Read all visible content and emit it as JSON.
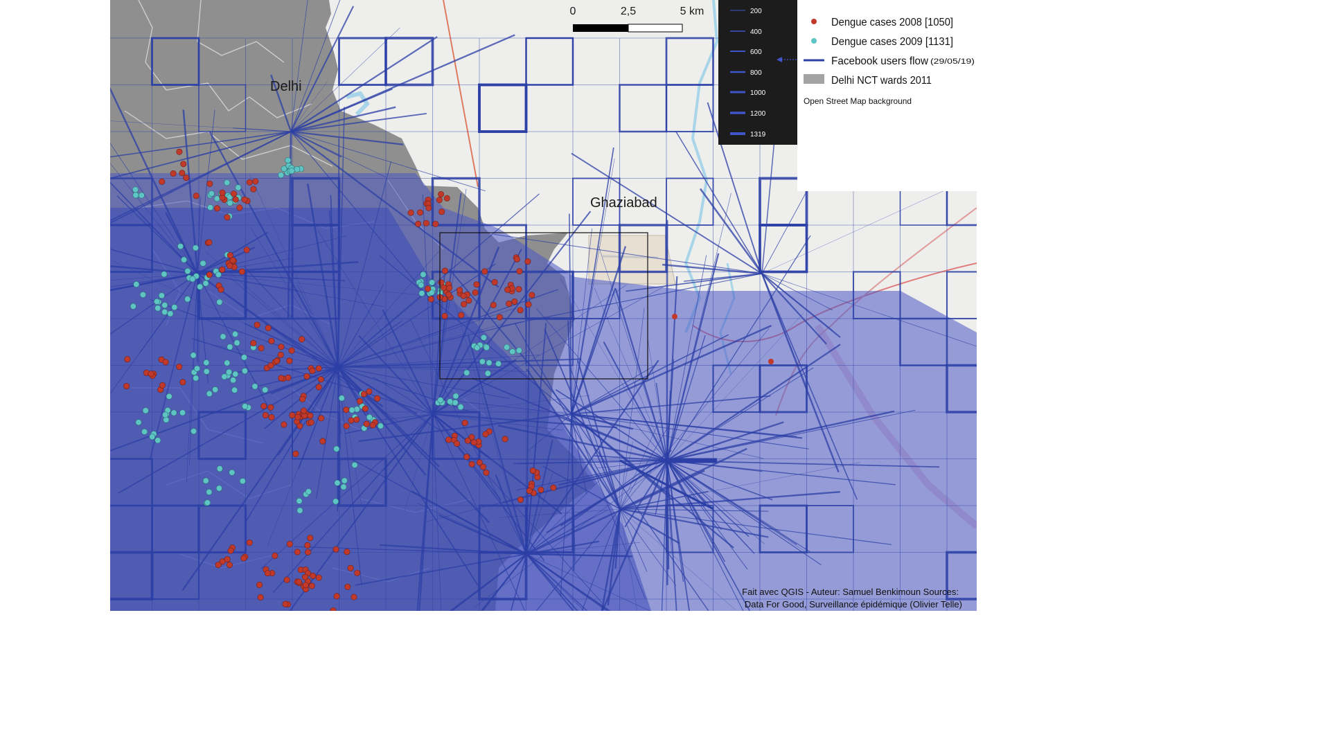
{
  "map": {
    "places": {
      "delhi": "Delhi",
      "ghaziabad": "Ghaziabad"
    },
    "scalebar": {
      "labels": [
        "0",
        "2,5",
        "5 km"
      ]
    },
    "flow_legend": {
      "values": [
        "200",
        "400",
        "600",
        "800",
        "1000",
        "1200",
        "1319"
      ]
    },
    "legend": {
      "dengue_2008": "Dengue cases 2008 [1050]",
      "dengue_2009": "Dengue cases 2009 [1131]",
      "facebook_flow": "Facebook users flow",
      "facebook_date": "(29/05/19)",
      "wards": "Delhi NCT wards 2011",
      "background": "Open Street Map background"
    },
    "credit": {
      "line1": "Fait avec QGIS - Auteur: Samuel Benkimoun Sources:",
      "line2": "Data For Good, Surveillance épidémique (Olivier Telle)"
    },
    "colors": {
      "dengue_2008": "#c0392b",
      "dengue_2009": "#5ec4c4",
      "flow": "#2c3fa6",
      "wards": "#8f8f8f",
      "osm_background": "#eeeeec"
    }
  }
}
